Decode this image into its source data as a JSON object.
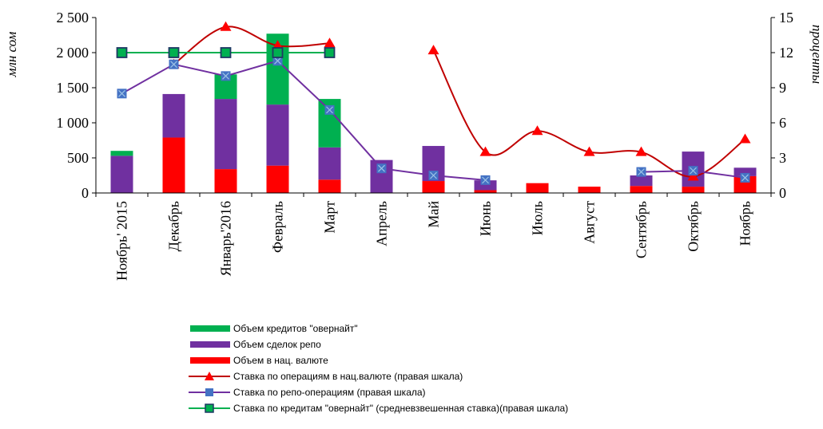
{
  "chart_data": {
    "type": "bar+line",
    "categories": [
      "Ноябрь' 2015",
      "Декабрь",
      "Январь'2016",
      "Февраль",
      "Март",
      "Апрель",
      "Май",
      "Июнь",
      "Июль",
      "Август",
      "Сентябрь",
      "Октябрь",
      "Ноябрь"
    ],
    "ylabel_left": "млн  сом",
    "ylabel_right": "проценты",
    "ylim_left": [
      0,
      2500
    ],
    "ylim_right": [
      0,
      15
    ],
    "yticks_left": [
      "0",
      "500",
      "1 000",
      "1 500",
      "2 000",
      "2 500"
    ],
    "yticks_right": [
      "0",
      "3",
      "6",
      "9",
      "12",
      "15"
    ],
    "bars": [
      {
        "name": "Объем кредитов \"овернайт\"",
        "color": "#00b050",
        "values": [
          70,
          0,
          350,
          1010,
          690,
          0,
          0,
          0,
          0,
          0,
          0,
          0,
          0
        ]
      },
      {
        "name": "Объем  сделок репо",
        "color": "#7030a0",
        "values": [
          530,
          620,
          1000,
          870,
          460,
          470,
          500,
          140,
          0,
          0,
          150,
          500,
          120
        ]
      },
      {
        "name": "Объем в нац. валюте",
        "color": "#ff0000",
        "values": [
          0,
          790,
          340,
          390,
          190,
          0,
          170,
          40,
          140,
          90,
          100,
          90,
          240
        ]
      }
    ],
    "lines": [
      {
        "name": "Ставка по операциям в нац.валюте (правая шкала)",
        "color": "#c00000",
        "marker": "triangle",
        "values": [
          null,
          11,
          14.2,
          12.6,
          12.8,
          null,
          12.2,
          3.5,
          5.3,
          3.5,
          3.5,
          1.4,
          4.6
        ]
      },
      {
        "name": "Ставка по репо-операциям (правая шкала)",
        "color": "#7030a0",
        "marker": "square",
        "values": [
          8.5,
          11,
          10,
          11.3,
          7.1,
          2.1,
          1.5,
          1.1,
          null,
          null,
          1.8,
          1.9,
          1.3
        ]
      },
      {
        "name": "Ставка по кредитам \"овернайт\" (средневзвешенная ставка)(правая шкала)",
        "color": "#00b050",
        "marker": "square-green",
        "values": [
          12,
          12,
          12,
          12,
          12,
          null,
          null,
          null,
          null,
          null,
          null,
          null,
          null
        ]
      }
    ]
  }
}
